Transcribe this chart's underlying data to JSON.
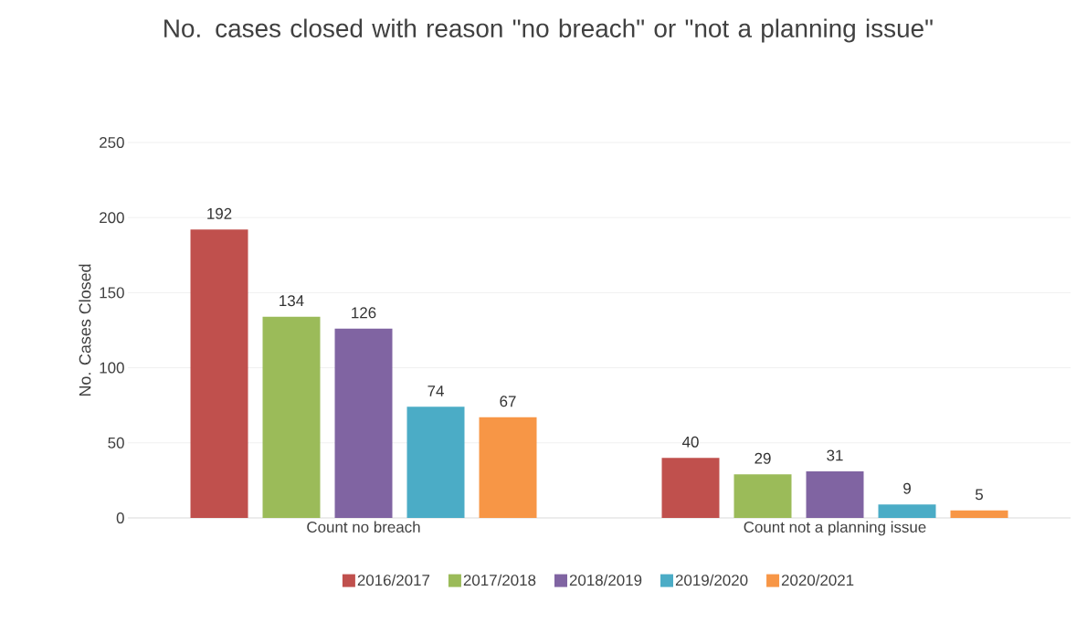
{
  "chart_data": {
    "type": "bar",
    "title": "No. cases closed with reason \"no breach\" or \"not a planning issue\"",
    "ylabel": "No. Cases Closed",
    "categories": [
      "Count no breach",
      "Count not a planning issue"
    ],
    "series": [
      {
        "name": "2016/2017",
        "color": "#c0504d",
        "values": [
          192,
          40
        ]
      },
      {
        "name": "2017/2018",
        "color": "#9bbb59",
        "values": [
          134,
          29
        ]
      },
      {
        "name": "2018/2019",
        "color": "#8064a2",
        "values": [
          126,
          31
        ]
      },
      {
        "name": "2019/2020",
        "color": "#4bacc6",
        "values": [
          74,
          9
        ]
      },
      {
        "name": "2020/2021",
        "color": "#f79646",
        "values": [
          67,
          5
        ]
      }
    ],
    "ylim": [
      0,
      250
    ],
    "yticks": [
      0,
      50,
      100,
      150,
      200,
      250
    ],
    "grid": "y",
    "legend": "bottom",
    "data_labels": true
  }
}
